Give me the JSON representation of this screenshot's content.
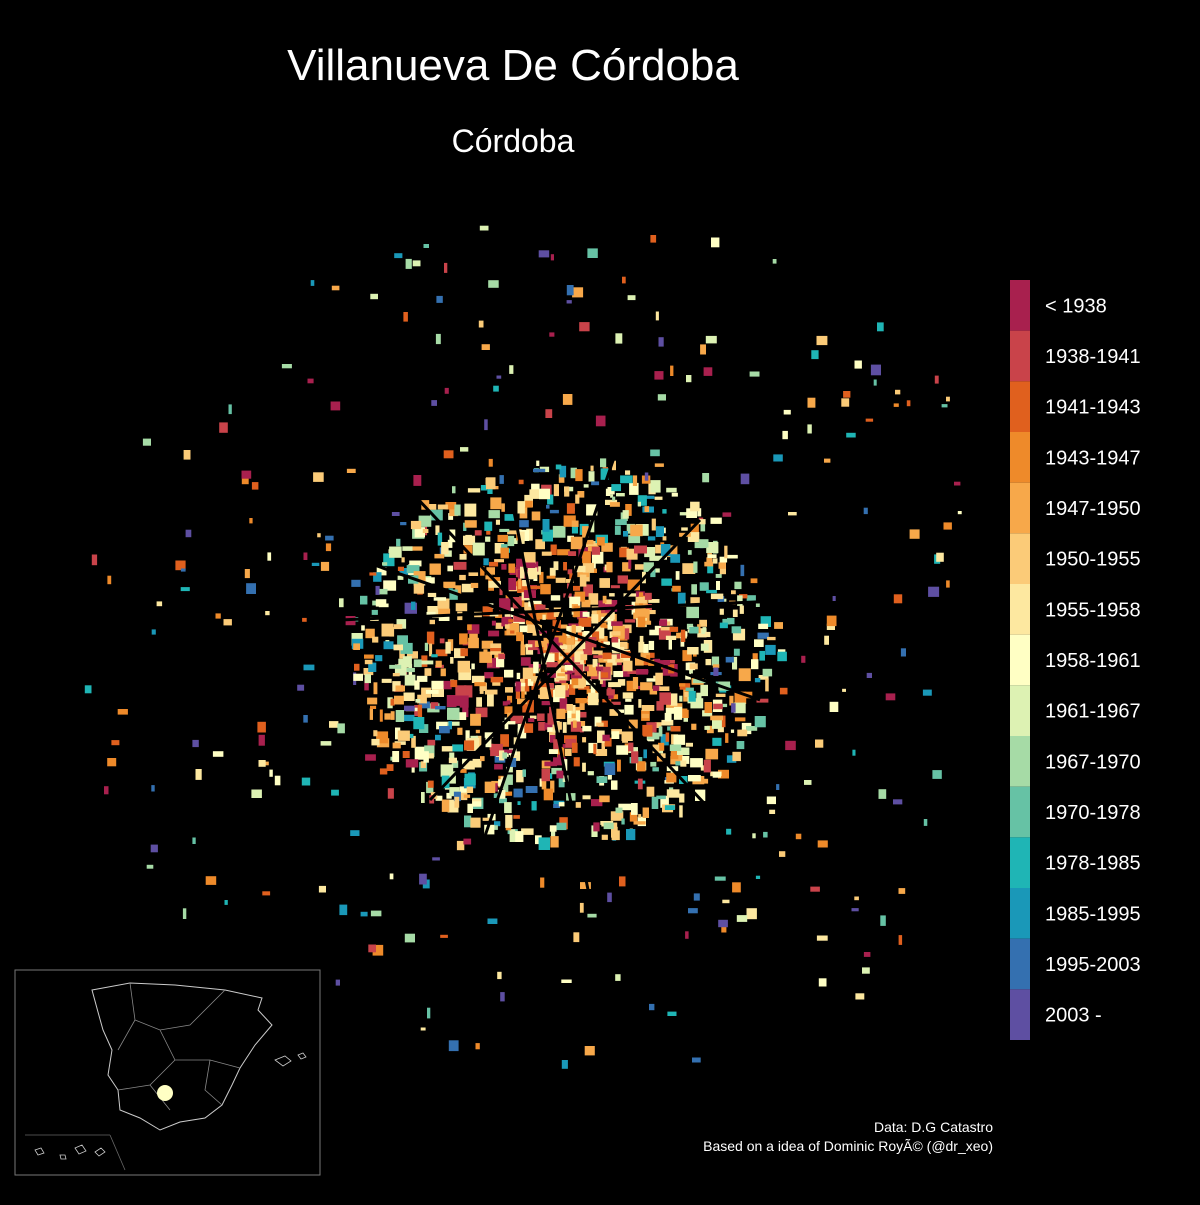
{
  "title": "Villanueva De Córdoba",
  "subtitle": "Córdoba",
  "legend": {
    "items": [
      {
        "label": "< 1938",
        "color": "#a8204e"
      },
      {
        "label": "1938-1941",
        "color": "#c9434a"
      },
      {
        "label": "1941-1943",
        "color": "#e0601e"
      },
      {
        "label": "1943-1947",
        "color": "#ee8a2a"
      },
      {
        "label": "1947-1950",
        "color": "#f7a84a"
      },
      {
        "label": "1950-1955",
        "color": "#fbcb78"
      },
      {
        "label": "1955-1958",
        "color": "#fde8a0"
      },
      {
        "label": "1958-1961",
        "color": "#ffffc4"
      },
      {
        "label": "1961-1967",
        "color": "#ddf2b3"
      },
      {
        "label": "1967-1970",
        "color": "#a6dba6"
      },
      {
        "label": "1970-1978",
        "color": "#66c2a5"
      },
      {
        "label": "1978-1985",
        "color": "#1fb5b5"
      },
      {
        "label": "1985-1995",
        "color": "#1a98b8"
      },
      {
        "label": "1995-2003",
        "color": "#3470b0"
      },
      {
        "label": "2003 -",
        "color": "#5e4fa2"
      }
    ]
  },
  "caption": [
    "Data: D.G Catastro",
    "Based on a idea of Dominic RoyÃ© (@dr_xeo)"
  ]
}
